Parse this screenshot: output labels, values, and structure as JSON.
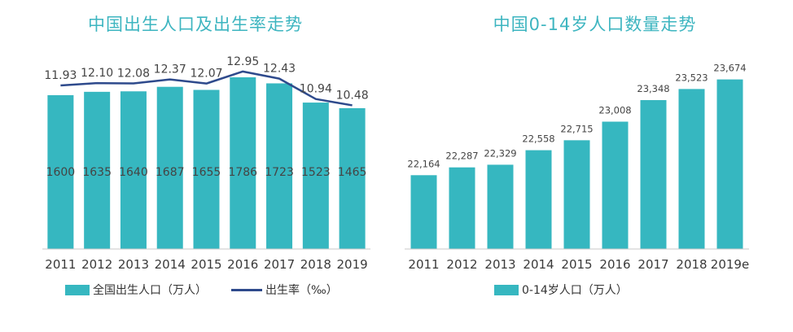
{
  "colors": {
    "bar": "#36b7c0",
    "line": "#2e4a8c",
    "axis": "#c8c8c8",
    "title": "#3db5c0"
  },
  "chart_data": [
    {
      "type": "bar",
      "title": "中国出生人口及出生率走势",
      "categories": [
        "2011",
        "2012",
        "2013",
        "2014",
        "2015",
        "2016",
        "2017",
        "2018",
        "2019"
      ],
      "series": [
        {
          "name": "全国出生人口（万人）",
          "type": "bar",
          "values": [
            1600,
            1635,
            1640,
            1687,
            1655,
            1786,
            1723,
            1523,
            1465
          ],
          "labels": [
            "1600",
            "1635",
            "1640",
            "1687",
            "1655",
            "1786",
            "1723",
            "1523",
            "1465"
          ]
        },
        {
          "name": "出生率（‰）",
          "type": "line",
          "values": [
            11.93,
            12.1,
            12.08,
            12.37,
            12.07,
            12.95,
            12.43,
            10.94,
            10.48
          ],
          "labels": [
            "11.93",
            "12.10",
            "12.08",
            "12.37",
            "12.07",
            "12.95",
            "12.43",
            "10.94",
            "10.48"
          ]
        }
      ],
      "ylim_bar": [
        0,
        1786
      ],
      "ylim_line": [
        0,
        13.0
      ]
    },
    {
      "type": "bar",
      "title": "中国0-14岁人口数量走势",
      "categories": [
        "2011",
        "2012",
        "2013",
        "2014",
        "2015",
        "2016",
        "2017",
        "2018",
        "2019e"
      ],
      "series": [
        {
          "name": "0-14岁人口（万人）",
          "values": [
            22164,
            22287,
            22329,
            22558,
            22715,
            23008,
            23348,
            23523,
            23674
          ],
          "labels": [
            "22,164",
            "22,287",
            "22,329",
            "22,558",
            "22,715",
            "23,008",
            "23,348",
            "23,523",
            "23,674"
          ]
        }
      ],
      "ylim": [
        21000,
        23900
      ]
    }
  ]
}
